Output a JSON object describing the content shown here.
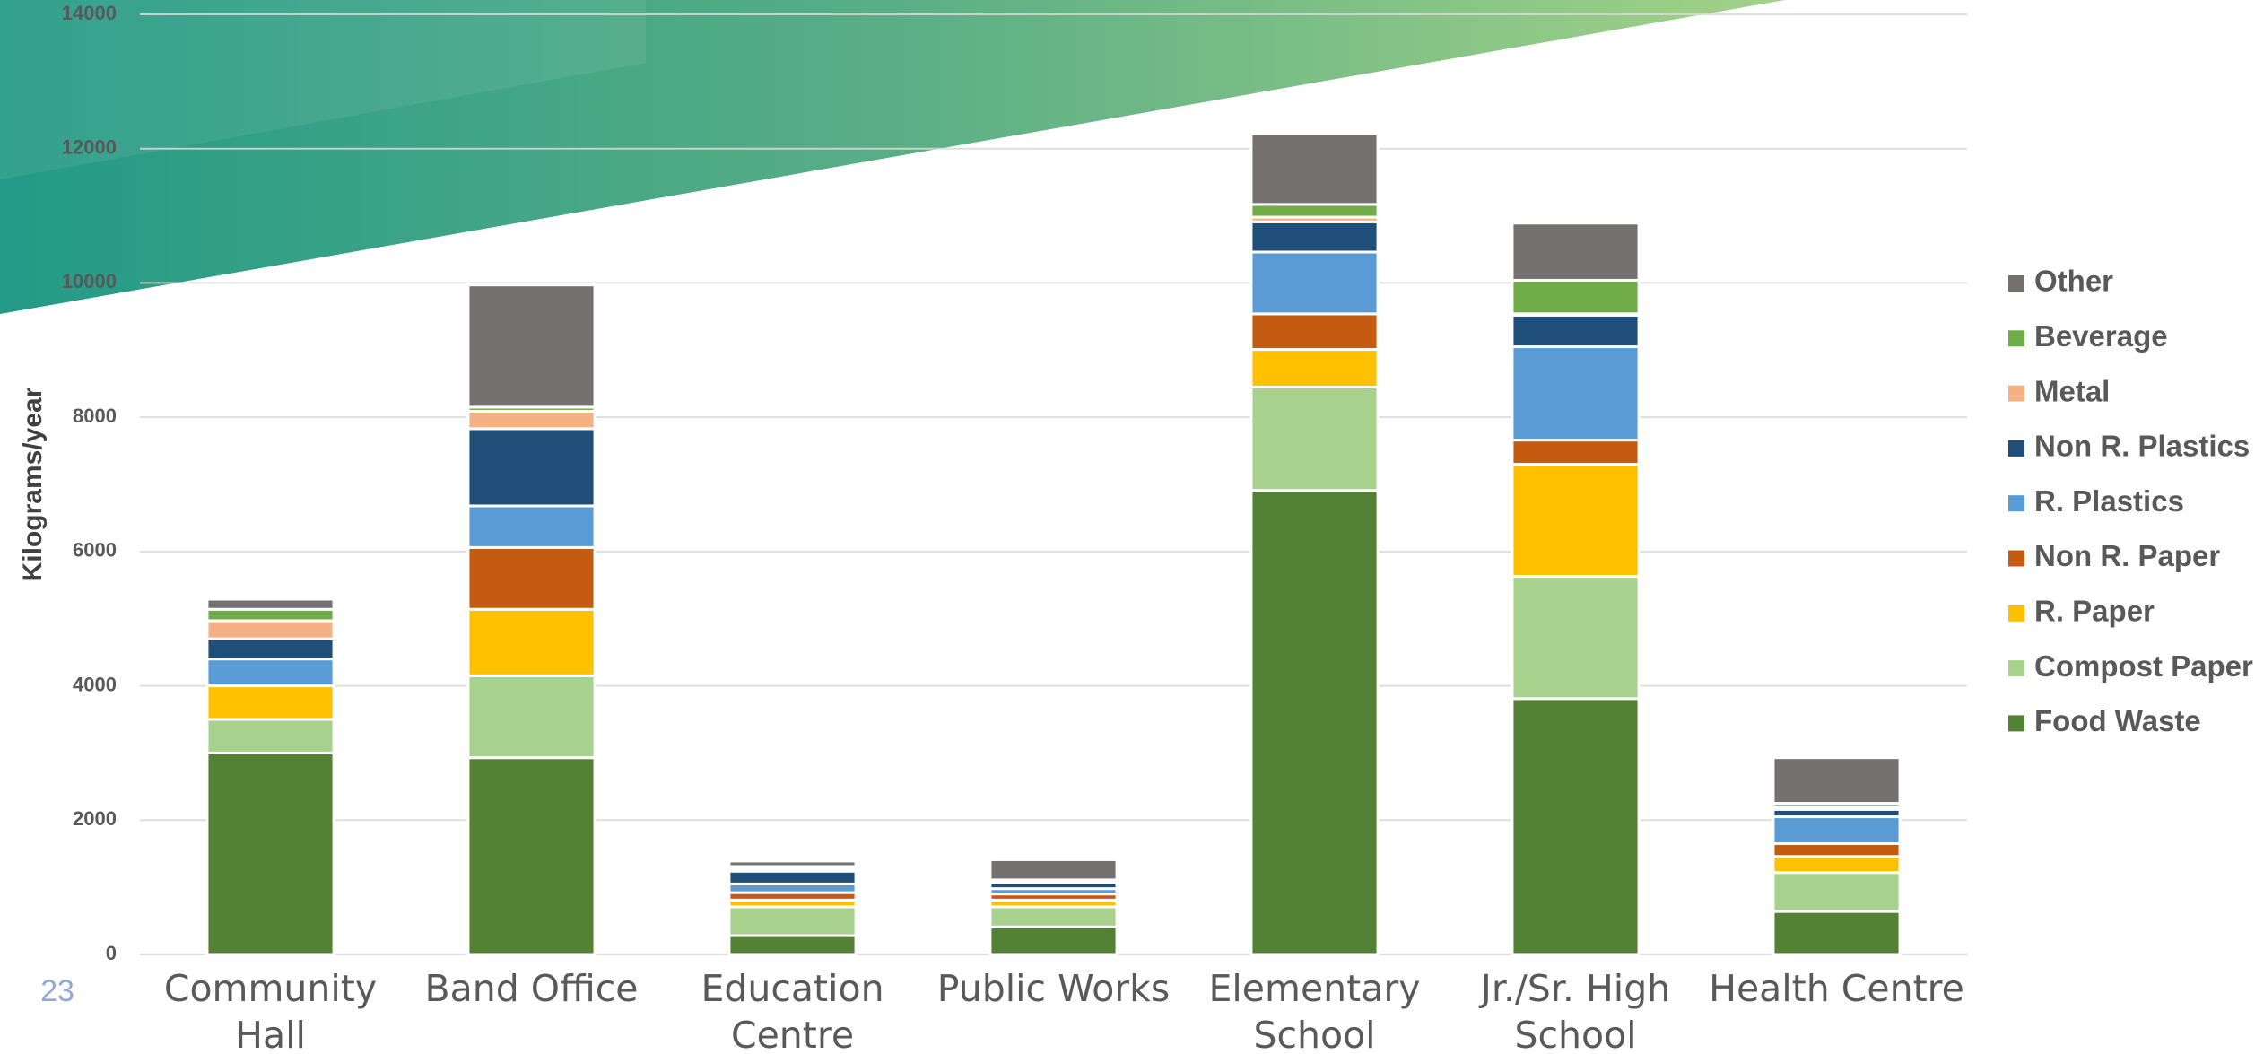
{
  "chart_data": {
    "type": "stacked-bar",
    "y_label": "Kilograms/year",
    "page_number": "23",
    "categories": [
      "Community Hall",
      "Band Office",
      "Education Centre",
      "Public Works",
      "Elementary School",
      "Jr./Sr. High School",
      "Health Centre"
    ],
    "series": [
      {
        "name": "Food Waste",
        "color": "#548235",
        "values": [
          3000,
          2930,
          280,
          410,
          6910,
          3810,
          640
        ]
      },
      {
        "name": "Compost Paper",
        "color": "#a9d18e",
        "values": [
          500,
          1220,
          430,
          300,
          1540,
          1820,
          580
        ]
      },
      {
        "name": "R. Paper",
        "color": "#ffc000",
        "values": [
          500,
          990,
          100,
          100,
          560,
          1670,
          240
        ]
      },
      {
        "name": "Non R. Paper",
        "color": "#c55a11",
        "values": [
          0,
          920,
          110,
          90,
          530,
          360,
          190
        ]
      },
      {
        "name": "R. Plastics",
        "color": "#5b9bd5",
        "values": [
          400,
          620,
          130,
          80,
          920,
          1390,
          400
        ]
      },
      {
        "name": "Non R. Plastics",
        "color": "#1f4e79",
        "values": [
          300,
          1150,
          190,
          90,
          450,
          470,
          110
        ]
      },
      {
        "name": "Metal",
        "color": "#f4b183",
        "values": [
          270,
          260,
          40,
          20,
          70,
          20,
          40
        ]
      },
      {
        "name": "Beverage",
        "color": "#70ad47",
        "values": [
          170,
          60,
          30,
          20,
          190,
          500,
          50
        ]
      },
      {
        "name": "Other",
        "color": "#767171",
        "values": [
          150,
          1820,
          80,
          300,
          1050,
          850,
          680
        ]
      }
    ],
    "ylim": [
      0,
      14000
    ],
    "yticks": [
      0,
      2000,
      4000,
      6000,
      8000,
      10000,
      12000,
      14000
    ],
    "grid": true,
    "legend": "right"
  }
}
